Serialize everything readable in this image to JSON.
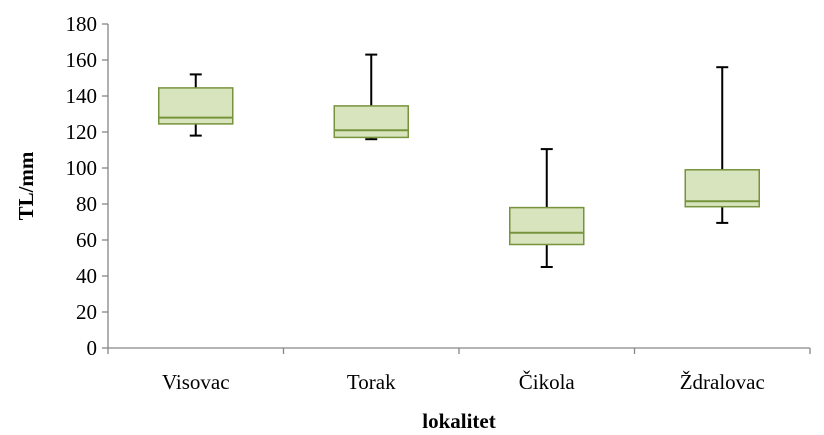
{
  "chart_data": {
    "type": "boxplot",
    "xlabel": "lokalitet",
    "ylabel": "TL/mm",
    "ylim": [
      0,
      180
    ],
    "yticks": [
      "0",
      "20",
      "40",
      "60",
      "80",
      "100",
      "120",
      "140",
      "160",
      "180"
    ],
    "categories": [
      "Visovac",
      "Torak",
      "Čikola",
      "Ždralovac"
    ],
    "boxes": [
      {
        "category": "Visovac",
        "min": 118,
        "q1": 124.5,
        "median": 128,
        "q3": 144.5,
        "max": 152
      },
      {
        "category": "Torak",
        "min": 116,
        "q1": 117,
        "median": 121,
        "q3": 134.5,
        "max": 163
      },
      {
        "category": "Čikola",
        "min": 45,
        "q1": 57.5,
        "median": 64,
        "q3": 78,
        "max": 110.5
      },
      {
        "category": "Ždralovac",
        "min": 69.5,
        "q1": 78.5,
        "median": 81.5,
        "q3": 99,
        "max": 156
      }
    ],
    "grid": false,
    "legend": "none",
    "colors": {
      "box_fill": "#d7e4bd",
      "box_stroke": "#77933c",
      "whisker": "#000000",
      "axis": "#868686"
    }
  }
}
